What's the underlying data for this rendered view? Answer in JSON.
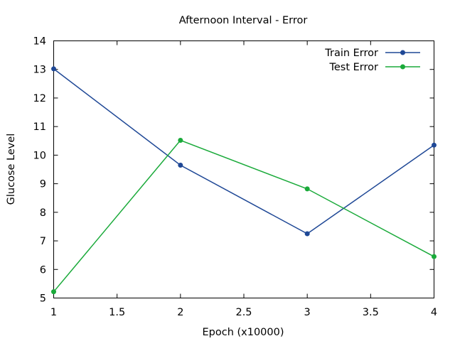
{
  "chart_data": {
    "type": "line",
    "title": "Afternoon Interval - Error",
    "xlabel": "Epoch (x10000)",
    "ylabel": "Glucose Level",
    "xlim": [
      1,
      4
    ],
    "ylim": [
      5,
      14
    ],
    "x_ticks": [
      "1",
      "1.5",
      "2",
      "2.5",
      "3",
      "3.5",
      "4"
    ],
    "y_ticks": [
      "5",
      "6",
      "7",
      "8",
      "9",
      "10",
      "11",
      "12",
      "13",
      "14"
    ],
    "grid": false,
    "legend_position": "top-right",
    "series": [
      {
        "name": "Train Error",
        "color": "#1f4896",
        "x": [
          1,
          2,
          3,
          4
        ],
        "y": [
          13.02,
          9.65,
          7.25,
          10.35
        ]
      },
      {
        "name": "Test Error",
        "color": "#1aaa3a",
        "x": [
          1,
          2,
          3,
          4
        ],
        "y": [
          5.22,
          10.52,
          8.82,
          6.45
        ]
      }
    ]
  }
}
